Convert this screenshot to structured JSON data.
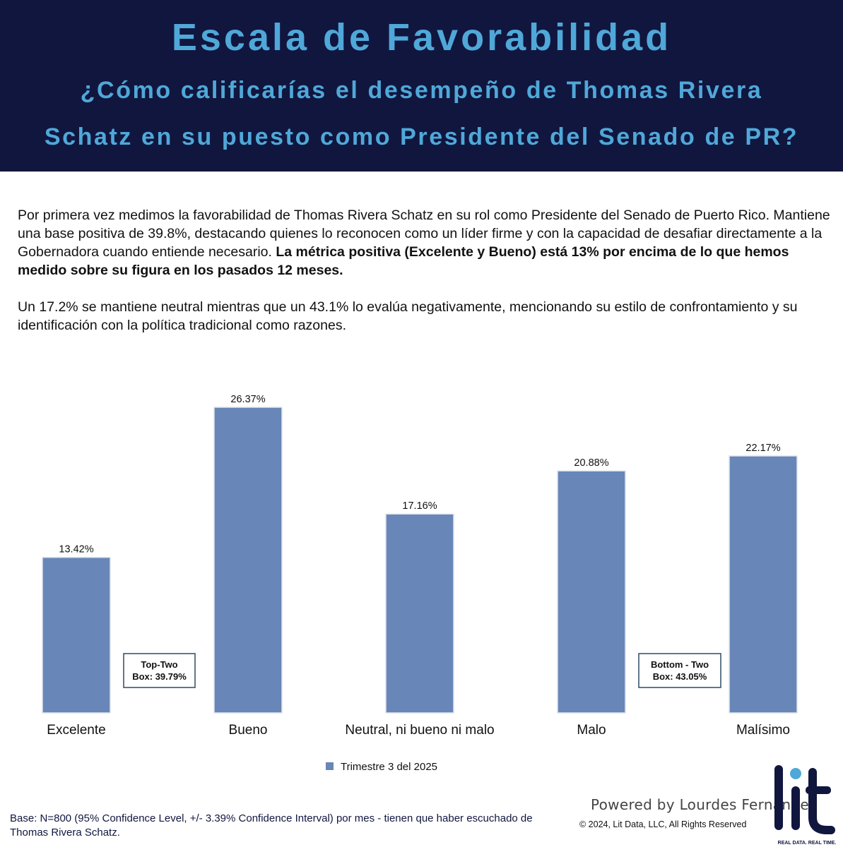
{
  "header": {
    "title": "Escala de Favorabilidad",
    "subtitle_line1": "¿Cómo calificarías el desempeño de Thomas Rivera",
    "subtitle_line2": "Schatz en su puesto como Presidente del Senado de PR?"
  },
  "body": {
    "paragraph1_plain": "Por primera vez medimos la favorabilidad de Thomas Rivera Schatz en su rol como Presidente del Senado de Puerto Rico. Mantiene una base positiva de 39.8%, destacando quienes lo reconocen como un líder firme y con la capacidad de desafiar directamente a la Gobernadora cuando entiende necesario. ",
    "paragraph1_bold": "La métrica positiva (Excelente y Bueno) está 13% por encima de lo que hemos medido sobre su figura en los pasados 12 meses.",
    "paragraph2": "Un 17.2% se mantiene neutral mientras que un 43.1% lo evalúa negativamente, mencionando su estilo de confrontamiento y su identificación con la política tradicional como razones."
  },
  "chart_data": {
    "type": "bar",
    "categories": [
      "Excelente",
      "Bueno",
      "Neutral, ni bueno ni malo",
      "Malo",
      "Malísimo"
    ],
    "series": [
      {
        "name": "Trimestre 3 del 2025",
        "values": [
          13.42,
          26.37,
          17.16,
          20.88,
          22.17
        ],
        "labels": [
          "13.42%",
          "26.37%",
          "17.16%",
          "20.88%",
          "22.17%"
        ]
      }
    ],
    "ylim": [
      0,
      26.37
    ],
    "grid": false,
    "legend_position": "bottom-center",
    "bar_color": "#6886b7",
    "annotations": [
      {
        "line1": "Top-Two",
        "line2": "Box: 39.79%"
      },
      {
        "line1": "Bottom - Two",
        "line2": "Box: 43.05%"
      }
    ]
  },
  "footer": {
    "base_note": "Base: N=800 (95% Confidence Level, +/- 3.39% Confidence Interval) por mes - tienen que haber escuchado de Thomas Rivera Schatz.",
    "powered_by": "Powered by Lourdes Fernández",
    "copyright": "© 2024, Lit Data, LLC, All Rights Reserved",
    "logo_text": "lit",
    "logo_tagline": "REAL DATA. REAL TIME."
  },
  "colors": {
    "header_bg": "#11163f",
    "title_color": "#4fa8d8",
    "bar": "#6886b7",
    "bar_edge": "#dfe4ee",
    "box_border": "#2f4a66",
    "logo": "#11163f",
    "logo_dot": "#4fa8d8"
  }
}
